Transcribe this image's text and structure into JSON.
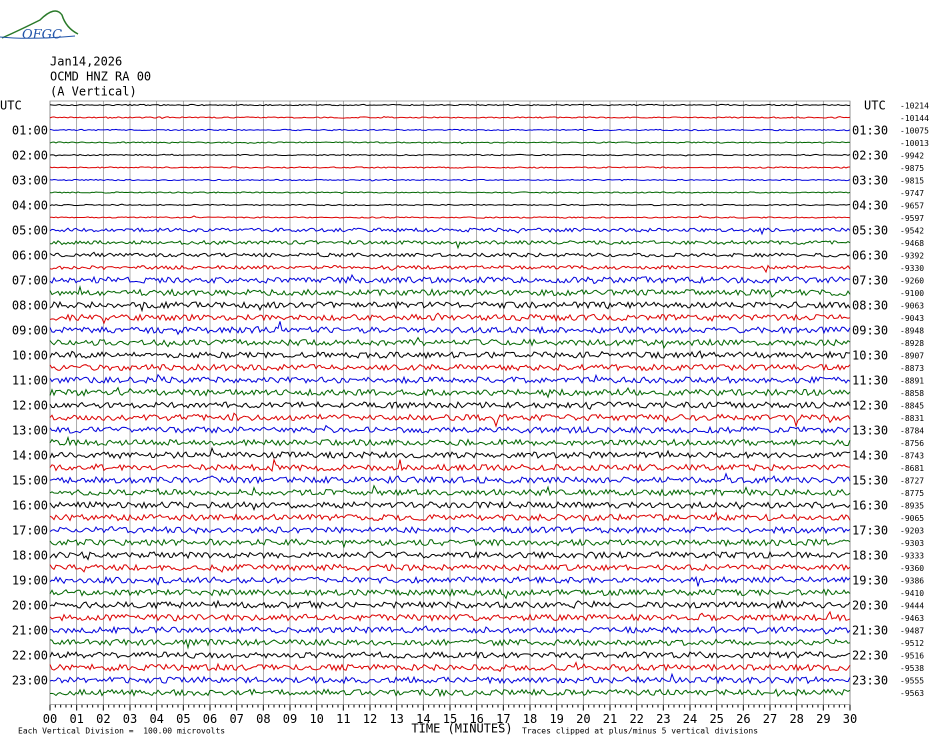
{
  "header": {
    "logo": "OFGC",
    "date": "Jan14,2026",
    "station": "OCMD HNZ RA 00",
    "component": "(A Vertical)"
  },
  "left_axis": {
    "title": "UTC",
    "labels": [
      "01:00",
      "02:00",
      "03:00",
      "04:00",
      "05:00",
      "06:00",
      "07:00",
      "08:00",
      "09:00",
      "10:00",
      "11:00",
      "12:00",
      "13:00",
      "14:00",
      "15:00",
      "16:00",
      "17:00",
      "18:00",
      "19:00",
      "20:00",
      "21:00",
      "22:00",
      "23:00"
    ]
  },
  "right_axis": {
    "title": "UTC",
    "labels": [
      "01:30",
      "02:30",
      "03:30",
      "04:30",
      "05:30",
      "06:30",
      "07:30",
      "08:30",
      "09:30",
      "10:30",
      "11:30",
      "12:30",
      "13:30",
      "14:30",
      "15:30",
      "16:30",
      "17:30",
      "18:30",
      "19:30",
      "20:30",
      "21:30",
      "22:30",
      "23:30"
    ],
    "offsets": [
      "-10214",
      "-10144",
      "-10075",
      "-10013",
      "-9942",
      "-9875",
      "-9815",
      "-9747",
      "-9657",
      "-9597",
      "-9542",
      "-9468",
      "-9392",
      "-9330",
      "-9260",
      "-9100",
      "-9063",
      "-9043",
      "-8948",
      "-8928",
      "-8907",
      "-8873",
      "-8891",
      "-8858",
      "-8845",
      "-8831",
      "-8784",
      "-8756",
      "-8743",
      "-8681",
      "-8727",
      "-8775",
      "-8935",
      "-9065",
      "-9203",
      "-9303",
      "-9333",
      "-9360",
      "-9386",
      "-9410",
      "-9444",
      "-9463",
      "-9487",
      "-9512",
      "-9516",
      "-9538",
      "-9555",
      "-9563"
    ]
  },
  "x_axis": {
    "ticks": [
      "00",
      "01",
      "02",
      "03",
      "04",
      "05",
      "06",
      "07",
      "08",
      "09",
      "10",
      "11",
      "12",
      "13",
      "14",
      "15",
      "16",
      "17",
      "18",
      "19",
      "20",
      "21",
      "22",
      "23",
      "24",
      "25",
      "26",
      "27",
      "28",
      "29",
      "30"
    ],
    "title": "TIME (MINUTES)"
  },
  "footer": {
    "scale": "Each Vertical Division =  100.00 microvolts",
    "clip": "Traces clipped at plus/minus 5 vertical divisions"
  },
  "trace_colors": [
    "#000000",
    "#dd0000",
    "#0000dd",
    "#006600"
  ]
}
